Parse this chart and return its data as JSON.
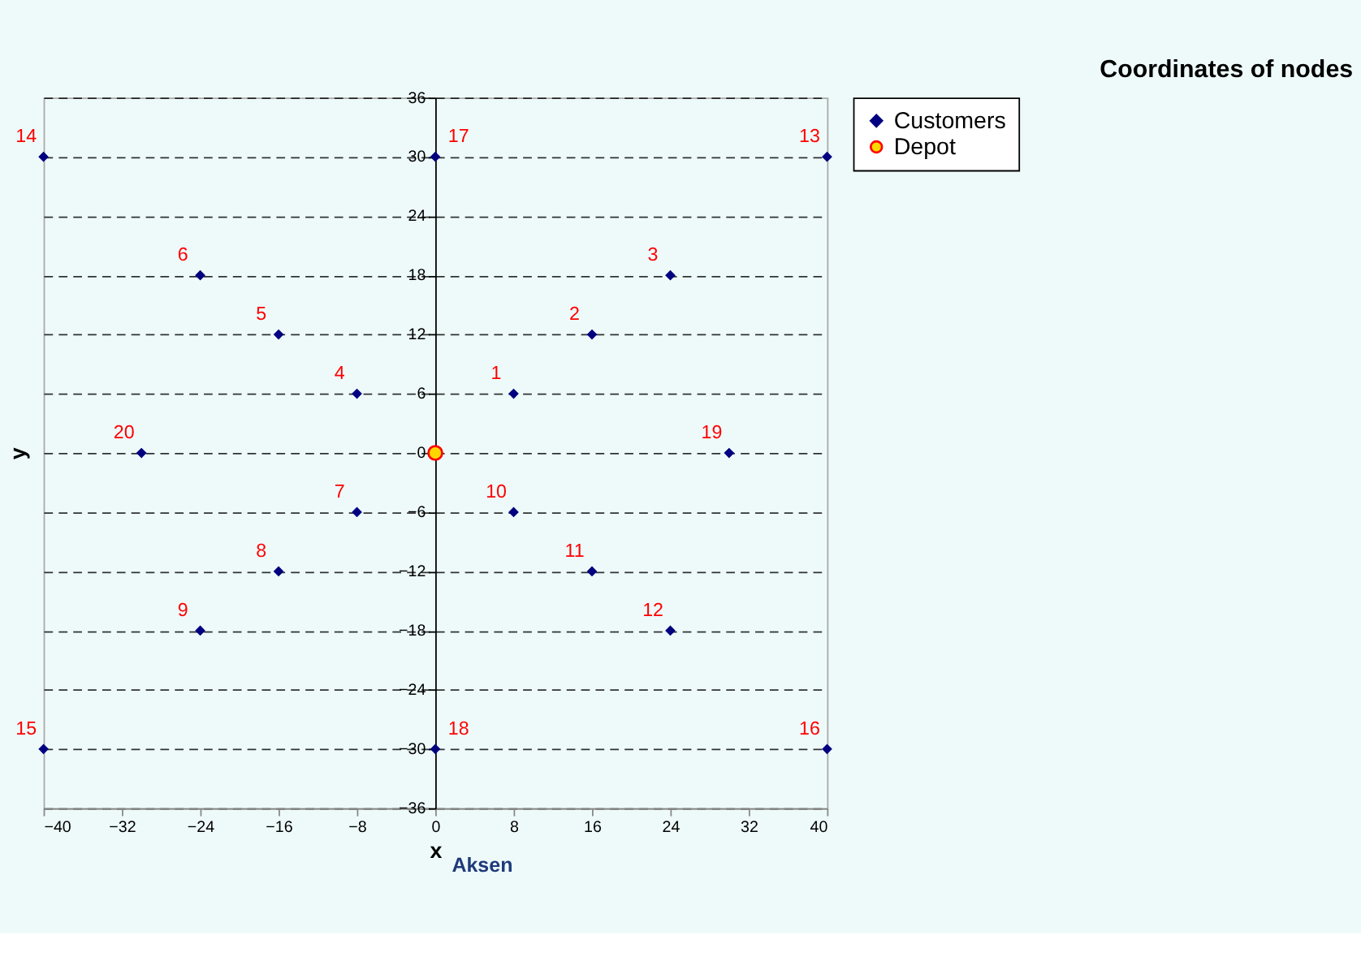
{
  "chart_data": {
    "type": "scatter",
    "title": "Coordinates of nodes",
    "xlabel": "x",
    "ylabel": "y",
    "xlim": [
      -40,
      40
    ],
    "xticks": [
      -40,
      -32,
      -24,
      -16,
      -8,
      0,
      8,
      16,
      24,
      32,
      40
    ],
    "ylim": [
      -36,
      36
    ],
    "yticks": [
      -36,
      -30,
      -24,
      -18,
      -12,
      -6,
      0,
      6,
      12,
      18,
      24,
      30,
      36
    ],
    "grid": "y",
    "legend": "right",
    "series": [
      {
        "name": "Customers",
        "color": "#000080",
        "marker": "diamond",
        "x": [
          8,
          16,
          24,
          -8,
          -16,
          -24,
          -8,
          -16,
          -24,
          8,
          16,
          24,
          40,
          -40,
          -40,
          40,
          0,
          0,
          30,
          -30
        ],
        "values": [
          6,
          12,
          18,
          6,
          12,
          18,
          -6,
          -12,
          -18,
          -6,
          -12,
          -18,
          30,
          30,
          -30,
          -30,
          30,
          -30,
          0,
          0
        ]
      },
      {
        "name": "Depot",
        "color": "#ffd700",
        "marker": "circle",
        "x": [
          0
        ],
        "values": [
          0
        ]
      }
    ],
    "annotations": [
      {
        "text": "1",
        "x": 8,
        "y": 6
      },
      {
        "text": "2",
        "x": 16,
        "y": 12
      },
      {
        "text": "3",
        "x": 24,
        "y": 18
      },
      {
        "text": "4",
        "x": -8,
        "y": 6
      },
      {
        "text": "5",
        "x": -16,
        "y": 12
      },
      {
        "text": "6",
        "x": -24,
        "y": 18
      },
      {
        "text": "7",
        "x": -8,
        "y": -6
      },
      {
        "text": "8",
        "x": -16,
        "y": -12
      },
      {
        "text": "9",
        "x": -24,
        "y": -18
      },
      {
        "text": "10",
        "x": 8,
        "y": -6
      },
      {
        "text": "11",
        "x": 16,
        "y": -12
      },
      {
        "text": "12",
        "x": 24,
        "y": -18
      },
      {
        "text": "13",
        "x": 40,
        "y": 30
      },
      {
        "text": "14",
        "x": -40,
        "y": 30
      },
      {
        "text": "15",
        "x": -40,
        "y": -30
      },
      {
        "text": "16",
        "x": 40,
        "y": -30
      },
      {
        "text": "17",
        "x": 0,
        "y": 30
      },
      {
        "text": "18",
        "x": 0,
        "y": -30
      },
      {
        "text": "19",
        "x": 30,
        "y": 0
      },
      {
        "text": "20",
        "x": -30,
        "y": 0
      },
      "Aksen"
    ]
  }
}
